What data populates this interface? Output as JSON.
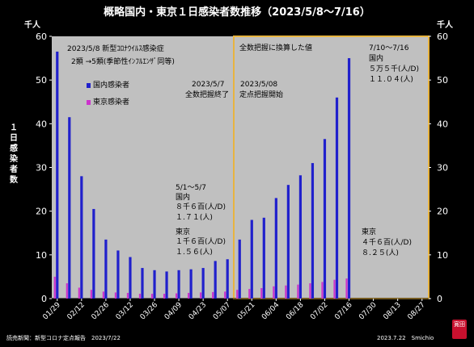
{
  "title": "概略国内・東京１日感染者数推移（2023/5/8～7/16）",
  "unit_left": "千人",
  "unit_right": "千人",
  "y_label": "１日感染者数",
  "source": "読売新聞：新型コロナ定点報告　2023/7/22",
  "credit": "2023.7.22　Smichio",
  "stamp": "寛田",
  "colors": {
    "plot_bg": "#c0c0c0",
    "highlight_border": "#e8b440",
    "domestic": "#2020cc",
    "tokyo": "#cc33cc"
  },
  "annotations": {
    "classification_line1": "2023/5/8 新型ｺﾛﾅｳｲﾙｽ感染症",
    "classification_line2": "2類 →5類(季節性ｲﾝﾌﾙｴﾝｻﾞ同等)",
    "full_count_end_date": "2023/5/7",
    "full_count_end_text": "全数把握終了",
    "sentinel_start_date": "2023/5/08",
    "sentinel_start_text": "定点把握開始",
    "converted_note": "全数把握に換算した値",
    "period_1": "5/1～5/7",
    "p1_domestic_label": "国内",
    "p1_domestic_value": "８千６百(人/D)",
    "p1_domestic_ratio": "１.７１(人)",
    "p1_tokyo_label": "東京",
    "p1_tokyo_value": "１千６百(人/D)",
    "p1_tokyo_ratio": "１.５６(人)",
    "period_2": "7/10～7/16",
    "p2_domestic_label": "国内",
    "p2_domestic_value": "５万５千(人/D)",
    "p2_domestic_ratio": "１１.０４(人)",
    "p2_tokyo_label": "東京",
    "p2_tokyo_value": "４千６百(人/D)",
    "p2_tokyo_ratio": "８.２５(人)"
  },
  "chart_data": {
    "type": "bar",
    "title": "概略国内・東京１日感染者数推移（2023/5/8～7/16）",
    "ylabel": "１日感染者数",
    "y_unit": "千人",
    "ylim": [
      0,
      60
    ],
    "y_ticks": [
      0,
      10,
      20,
      30,
      40,
      50,
      60
    ],
    "grid": false,
    "legend_position": "left",
    "x_tick_labels": [
      "01/29",
      "02/12",
      "02/26",
      "03/12",
      "03/26",
      "04/09",
      "04/23",
      "05/07",
      "05/21",
      "06/04",
      "06/18",
      "07/02",
      "07/16",
      "07/30",
      "08/13",
      "08/27"
    ],
    "categories": [
      "01/29",
      "02/05",
      "02/12",
      "02/19",
      "02/26",
      "03/05",
      "03/12",
      "03/19",
      "03/26",
      "04/02",
      "04/09",
      "04/16",
      "04/23",
      "04/30",
      "05/07",
      "05/14",
      "05/21",
      "05/28",
      "06/04",
      "06/11",
      "06/18",
      "06/25",
      "07/02",
      "07/09",
      "07/16",
      "07/23",
      "07/30",
      "08/06",
      "08/13",
      "08/20",
      "08/27"
    ],
    "series": [
      {
        "name": "国内感染者",
        "values": [
          56.5,
          41.5,
          28.0,
          20.5,
          13.5,
          11.0,
          9.5,
          7.0,
          6.5,
          6.2,
          6.5,
          6.7,
          7.0,
          8.6,
          9.0,
          13.5,
          18.0,
          18.5,
          23.0,
          26.0,
          28.2,
          31.0,
          36.5,
          46.0,
          55.0,
          null,
          null,
          null,
          null,
          null,
          null
        ]
      },
      {
        "name": "東京感染者",
        "values": [
          5.0,
          3.5,
          2.5,
          2.0,
          1.6,
          1.4,
          1.3,
          1.1,
          1.1,
          1.1,
          1.2,
          1.3,
          1.4,
          1.5,
          1.6,
          2.0,
          2.2,
          2.4,
          2.8,
          3.0,
          3.2,
          3.5,
          3.8,
          4.3,
          4.6,
          null,
          null,
          null,
          null,
          null,
          null
        ]
      }
    ]
  }
}
